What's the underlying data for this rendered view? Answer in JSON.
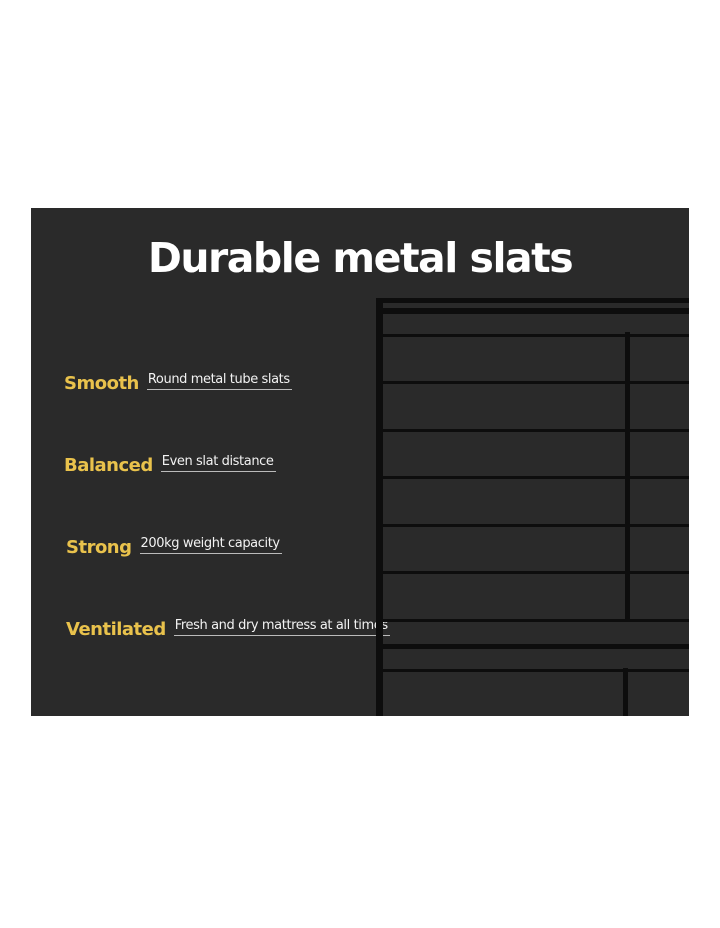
{
  "title": "Durable metal slats",
  "accent_color": "#e9c24c",
  "features": [
    {
      "label": "Smooth",
      "description": "Round metal tube slats"
    },
    {
      "label": "Balanced",
      "description": "Even slat distance"
    },
    {
      "label": "Strong",
      "description": "200kg weight capacity"
    },
    {
      "label": "Ventilated",
      "description": "Fresh and dry mattress at all times"
    }
  ]
}
